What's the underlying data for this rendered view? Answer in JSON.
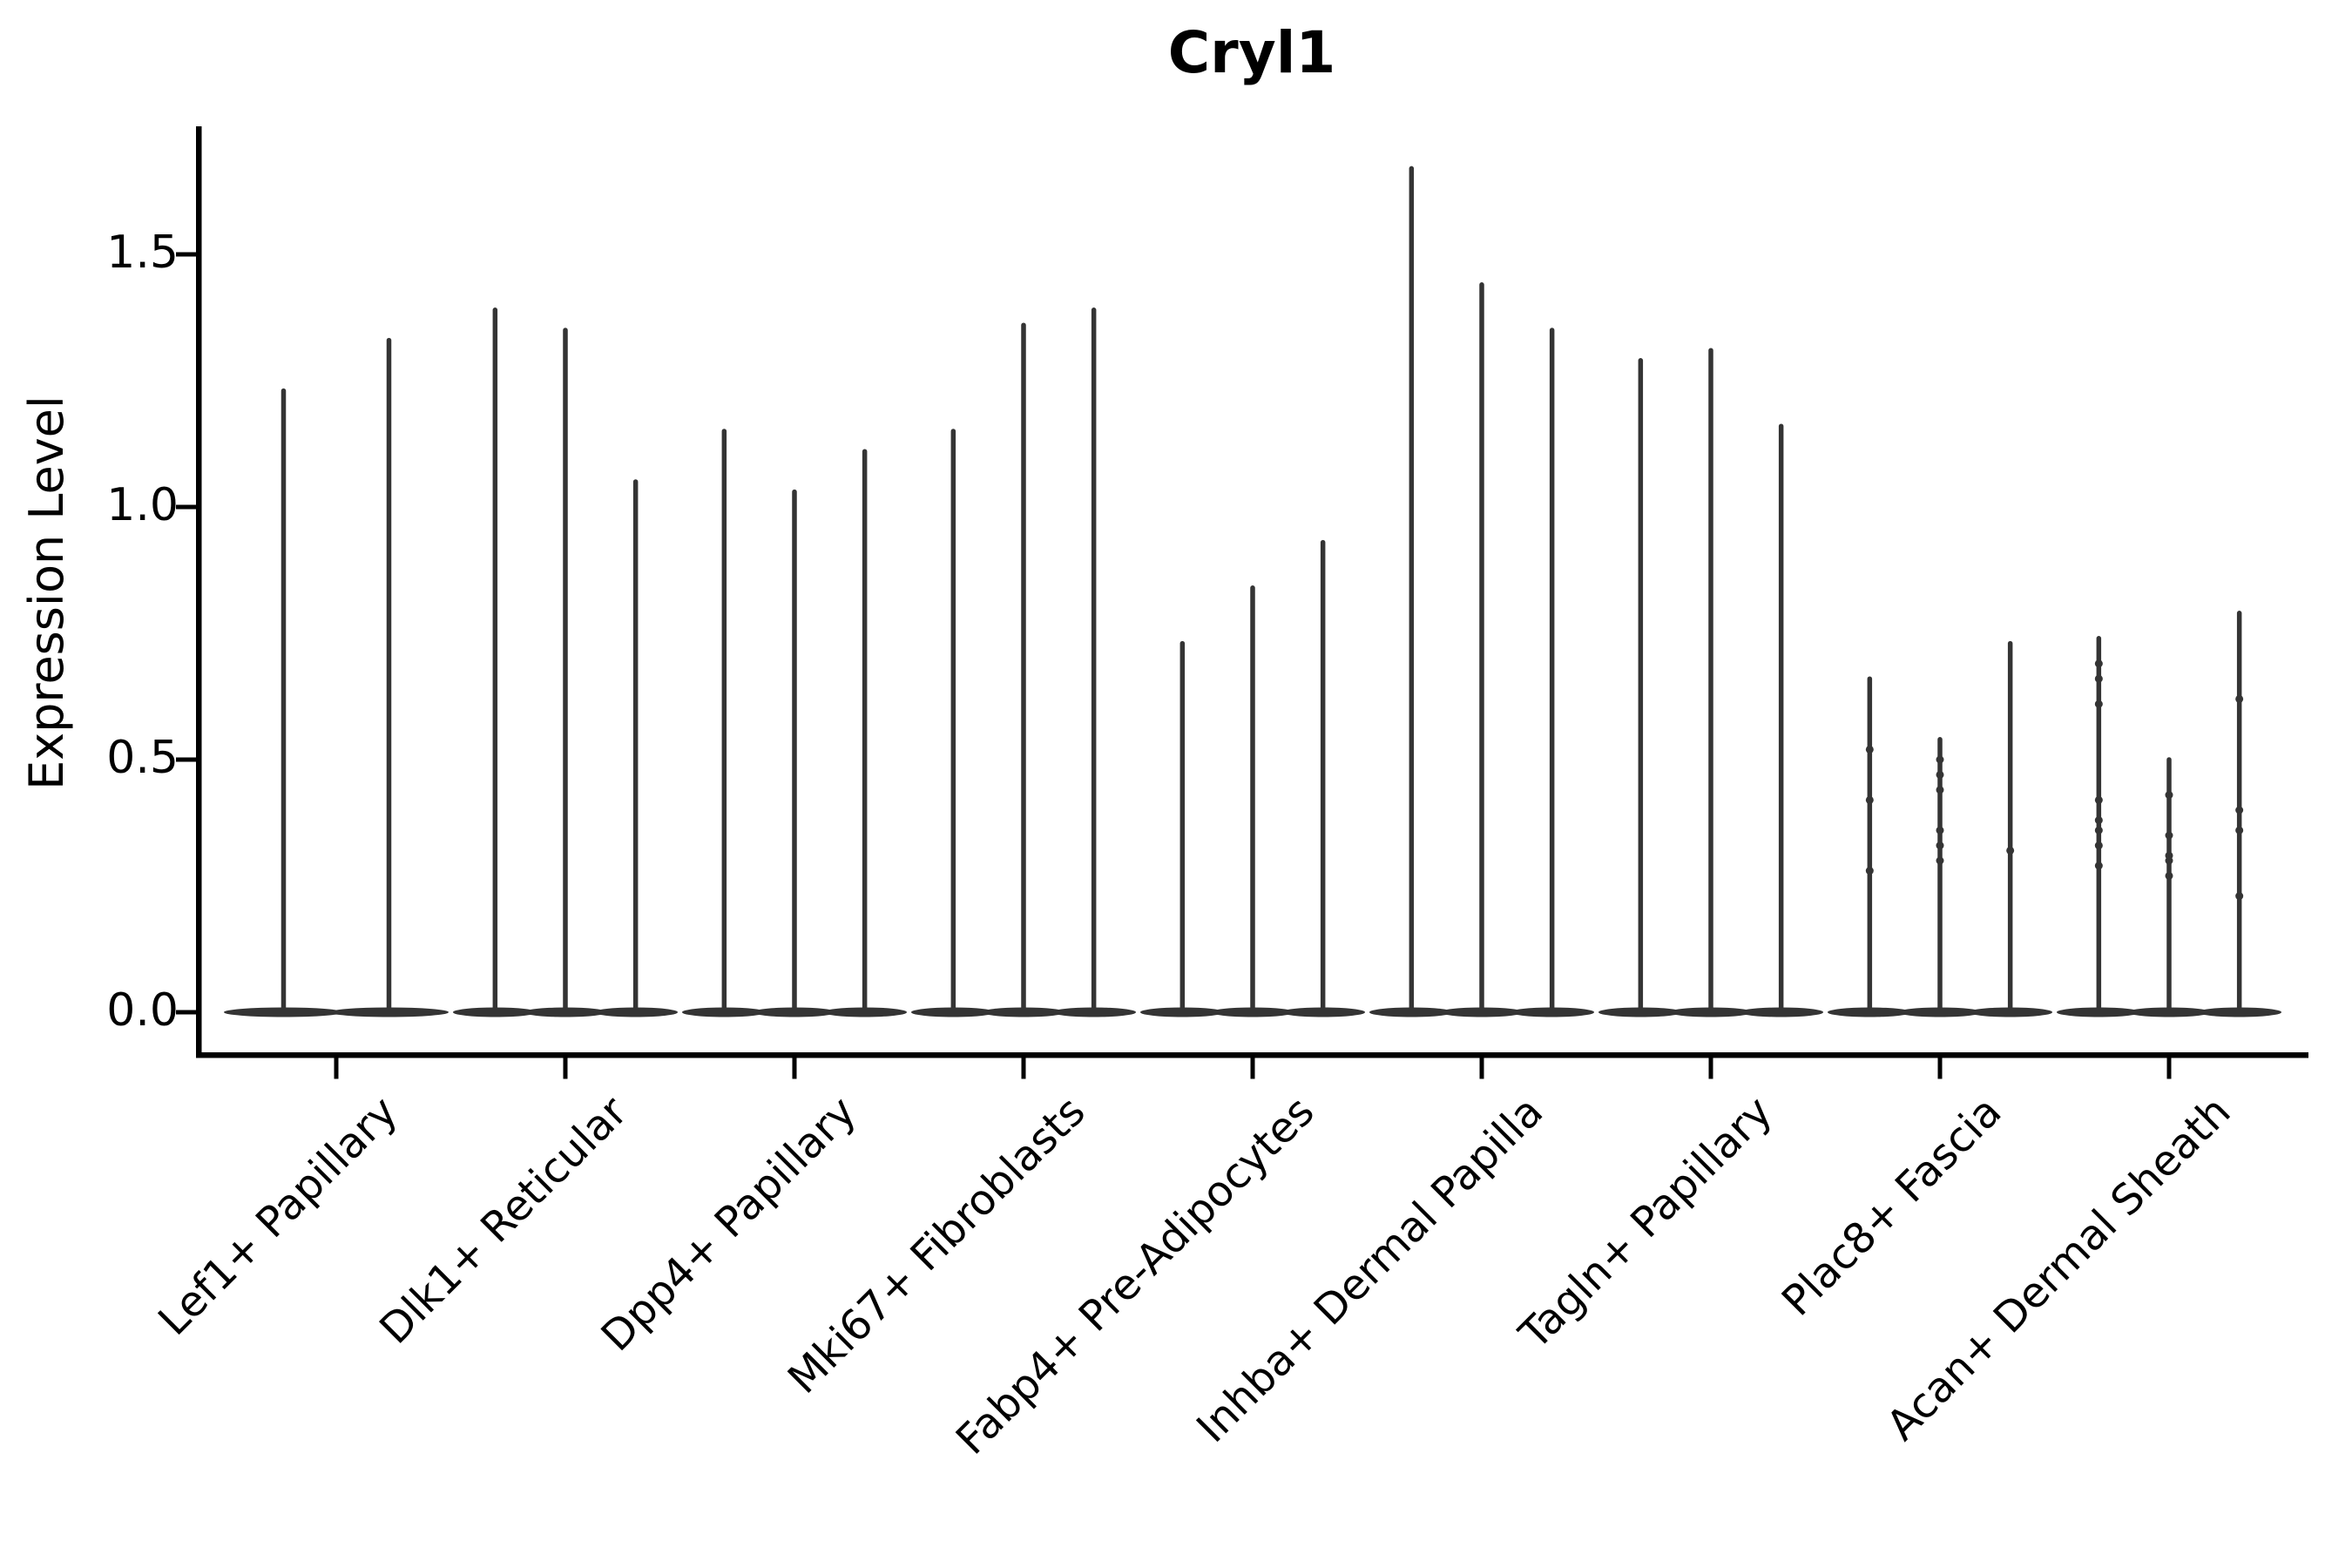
{
  "chart_data": {
    "type": "violin",
    "title": "Cryl1",
    "xlabel": "",
    "ylabel": "Expression Level",
    "ylim": [
      -0.08,
      1.75
    ],
    "grid": false,
    "legend": "none",
    "y_ticks": [
      0.0,
      0.5,
      1.0,
      1.5
    ],
    "y_tick_labels": [
      "0.0",
      "0.5",
      "1.0",
      "1.5"
    ],
    "categories": [
      "Lef1+ Papillary",
      "Dlk1+ Reticular",
      "Dpp4+ Papillary",
      "Mki67+ Fibroblasts",
      "Fabp4+ Pre-Adipocytes",
      "Inhba+ Dermal Papilla",
      "Tagln+ Papillary",
      "Plac8+ Fascia",
      "Acan+ Dermal Sheath"
    ],
    "series": [
      {
        "category": "Lef1+ Papillary",
        "violins": [
          {
            "max": 1.23,
            "points": []
          },
          {
            "max": 1.33,
            "points": []
          }
        ]
      },
      {
        "category": "Dlk1+ Reticular",
        "violins": [
          {
            "max": 1.39,
            "points": []
          },
          {
            "max": 1.35,
            "points": []
          },
          {
            "max": 1.05,
            "points": []
          }
        ]
      },
      {
        "category": "Dpp4+ Papillary",
        "violins": [
          {
            "max": 1.15,
            "points": []
          },
          {
            "max": 1.03,
            "points": []
          },
          {
            "max": 1.11,
            "points": []
          }
        ]
      },
      {
        "category": "Mki67+ Fibroblasts",
        "violins": [
          {
            "max": 1.15,
            "points": []
          },
          {
            "max": 1.36,
            "points": []
          },
          {
            "max": 1.39,
            "points": []
          }
        ]
      },
      {
        "category": "Fabp4+ Pre-Adipocytes",
        "violins": [
          {
            "max": 0.73,
            "points": []
          },
          {
            "max": 0.84,
            "points": []
          },
          {
            "max": 0.93,
            "points": []
          }
        ]
      },
      {
        "category": "Inhba+ Dermal Papilla",
        "violins": [
          {
            "max": 1.67,
            "points": []
          },
          {
            "max": 1.44,
            "points": []
          },
          {
            "max": 1.35,
            "points": []
          }
        ]
      },
      {
        "category": "Tagln+ Papillary",
        "violins": [
          {
            "max": 1.29,
            "points": []
          },
          {
            "max": 1.31,
            "points": []
          },
          {
            "max": 1.16,
            "points": []
          }
        ]
      },
      {
        "category": "Plac8+ Fascia",
        "violins": [
          {
            "max": 0.66,
            "points": [
              0.52,
              0.42,
              0.28
            ]
          },
          {
            "max": 0.54,
            "points": [
              0.5,
              0.47,
              0.44,
              0.36,
              0.33,
              0.3
            ]
          },
          {
            "max": 0.73,
            "points": [
              0.32
            ]
          }
        ]
      },
      {
        "category": "Acan+ Dermal Sheath",
        "violins": [
          {
            "max": 0.74,
            "points": [
              0.69,
              0.66,
              0.61,
              0.42,
              0.38,
              0.36,
              0.33,
              0.29
            ]
          },
          {
            "max": 0.5,
            "points": [
              0.43,
              0.35,
              0.31,
              0.3,
              0.27
            ]
          },
          {
            "max": 0.79,
            "points": [
              0.62,
              0.4,
              0.36,
              0.23
            ]
          }
        ]
      }
    ]
  },
  "colors": {
    "violin": "#343434",
    "axis": "#000000",
    "text": "#000000",
    "background": "#ffffff"
  }
}
